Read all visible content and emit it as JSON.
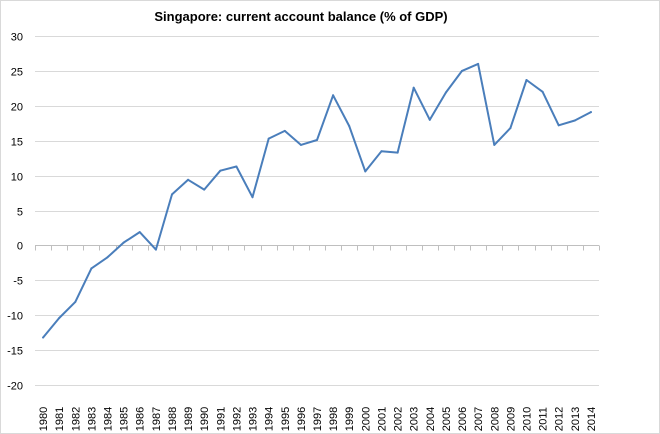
{
  "chart_data": {
    "type": "line",
    "title": "Singapore: current account balance (% of GDP)",
    "xlabel": "",
    "ylabel": "",
    "ylim": [
      -20,
      30
    ],
    "yticks": [
      -20,
      -15,
      -10,
      -5,
      0,
      5,
      10,
      15,
      20,
      25,
      30
    ],
    "grid": true,
    "legend": "none",
    "line_color": "#4a7ebb",
    "categories": [
      "1980",
      "1981",
      "1982",
      "1983",
      "1984",
      "1985",
      "1986",
      "1987",
      "1988",
      "1989",
      "1990",
      "1991",
      "1992",
      "1993",
      "1994",
      "1995",
      "1996",
      "1997",
      "1998",
      "1999",
      "2000",
      "2001",
      "2002",
      "2003",
      "2004",
      "2005",
      "2006",
      "2007",
      "2008",
      "2009",
      "2010",
      "2011",
      "2012",
      "2013",
      "2014"
    ],
    "series": [
      {
        "name": "Current account balance (% of GDP)",
        "values": [
          -13.2,
          -10.4,
          -8.1,
          -3.3,
          -1.7,
          0.4,
          1.9,
          -0.6,
          7.3,
          9.4,
          8.0,
          10.7,
          11.3,
          6.9,
          15.3,
          16.4,
          14.4,
          15.1,
          21.5,
          17.1,
          10.6,
          13.5,
          13.3,
          22.6,
          18.0,
          21.9,
          25.0,
          26.0,
          14.4,
          16.8,
          23.7,
          22.0,
          17.2,
          17.9,
          19.1
        ]
      }
    ]
  }
}
